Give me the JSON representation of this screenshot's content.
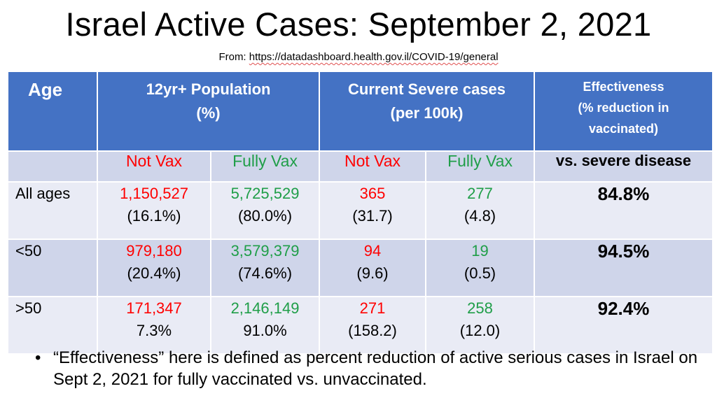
{
  "title": "Israel Active Cases: September 2, 2021",
  "source": {
    "prefix": "From: ",
    "url": "https://datadashboard.health.gov.il/COVID-19/general"
  },
  "colors": {
    "header_bg": "#4472c4",
    "not_vax": "#ff0000",
    "fully_vax": "#1f9e48"
  },
  "table": {
    "headers": {
      "age": "Age",
      "population_line1": "12yr+ Population",
      "population_line2": "(%)",
      "severe_line1": "Current Severe cases",
      "severe_line2": "(per 100k)",
      "eff_line1": "Effectiveness",
      "eff_line2": "(% reduction in",
      "eff_line3": "vaccinated)"
    },
    "subheaders": {
      "not_vax_pop": "Not Vax",
      "fully_vax_pop": "Fully Vax",
      "not_vax_severe": "Not Vax",
      "fully_vax_severe": "Fully Vax",
      "vs": "vs. severe disease"
    },
    "rows": [
      {
        "age": "All ages",
        "not_vax_pop": "1,150,527",
        "not_vax_pop_pct": "(16.1%)",
        "fully_vax_pop": "5,725,529",
        "fully_vax_pop_pct": "(80.0%)",
        "not_vax_severe": "365",
        "not_vax_severe_rate": "(31.7)",
        "fully_vax_severe": "277",
        "fully_vax_severe_rate": "(4.8)",
        "effectiveness": "84.8%"
      },
      {
        "age": "<50",
        "not_vax_pop": "979,180",
        "not_vax_pop_pct": "(20.4%)",
        "fully_vax_pop": "3,579,379",
        "fully_vax_pop_pct": "(74.6%)",
        "not_vax_severe": "94",
        "not_vax_severe_rate": "(9.6)",
        "fully_vax_severe": "19",
        "fully_vax_severe_rate": "(0.5)",
        "effectiveness": "94.5%"
      },
      {
        "age": ">50",
        "not_vax_pop": "171,347",
        "not_vax_pop_pct": "7.3%",
        "fully_vax_pop": "2,146,149",
        "fully_vax_pop_pct": "91.0%",
        "not_vax_severe": "271",
        "not_vax_severe_rate": "(158.2)",
        "fully_vax_severe": "258",
        "fully_vax_severe_rate": "(12.0)",
        "effectiveness": "92.4%"
      }
    ]
  },
  "note": {
    "bullet": "•",
    "text": "“Effectiveness” here is defined as percent reduction of active serious cases in Israel on Sept 2, 2021 for fully vaccinated vs. unvaccinated."
  }
}
